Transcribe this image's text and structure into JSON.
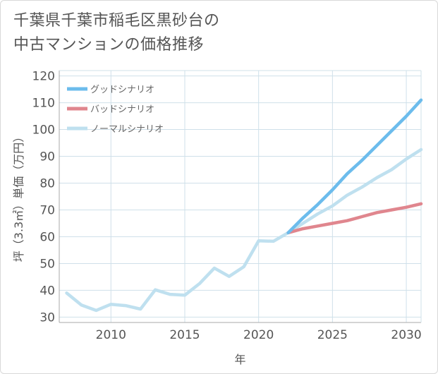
{
  "title_lines": [
    "千葉県千葉市稲毛区黒砂台の",
    "中古マンションの価格推移"
  ],
  "colors": {
    "good": "#6cbcec",
    "bad": "#e0868e",
    "normal": "#bfe0ef",
    "grid": "#cfe0ea",
    "axis": "#aaaaaa",
    "text": "#555555"
  },
  "chart_data": {
    "type": "line",
    "title": "千葉県千葉市稲毛区黒砂台の中古マンションの価格推移",
    "xlabel": "年",
    "ylabel": "坪（3.3㎡）単価（万円）",
    "xlim": [
      2006.5,
      2031
    ],
    "ylim": [
      28,
      122
    ],
    "x_ticks": [
      2010,
      2015,
      2020,
      2025,
      2030
    ],
    "y_ticks": [
      30,
      40,
      50,
      60,
      70,
      80,
      90,
      100,
      110,
      120
    ],
    "grid": true,
    "legend_position": "top-left",
    "series": [
      {
        "name": "グッドシナリオ",
        "color_key": "good",
        "x": [
          2022,
          2023,
          2024,
          2025,
          2026,
          2027,
          2028,
          2029,
          2030,
          2031
        ],
        "y": [
          61.5,
          67,
          72,
          77.5,
          83.5,
          88.5,
          94,
          99.5,
          105,
          111
        ]
      },
      {
        "name": "バッドシナリオ",
        "color_key": "bad",
        "x": [
          2022,
          2023,
          2024,
          2025,
          2026,
          2027,
          2028,
          2029,
          2030,
          2031
        ],
        "y": [
          61.5,
          63,
          64,
          65,
          66,
          67.5,
          69,
          70,
          71,
          72.3
        ]
      },
      {
        "name": "ノーマルシナリオ",
        "color_key": "normal",
        "x": [
          2007,
          2008,
          2009,
          2010,
          2011,
          2012,
          2013,
          2014,
          2015,
          2016,
          2017,
          2018,
          2019,
          2020,
          2021,
          2022,
          2023,
          2024,
          2025,
          2026,
          2027,
          2028,
          2029,
          2030,
          2031
        ],
        "y": [
          39,
          34.5,
          32.5,
          34.8,
          34.3,
          33,
          40.2,
          38.5,
          38.2,
          42.5,
          48.3,
          45.2,
          48.8,
          58.5,
          58.3,
          61.5,
          65,
          68.5,
          71.5,
          75.5,
          78.5,
          82,
          85,
          89,
          92.5
        ]
      }
    ]
  }
}
